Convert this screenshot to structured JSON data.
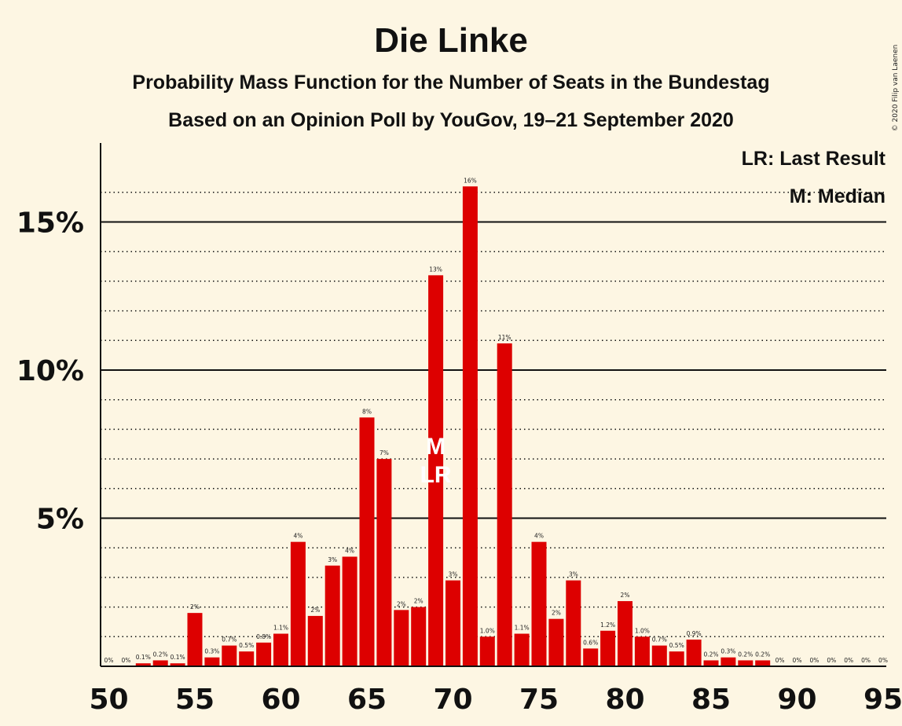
{
  "title": "Die Linke",
  "subtitle1": "Probability Mass Function for the Number of Seats in the Bundestag",
  "subtitle2": "Based on an Opinion Poll by YouGov, 19–21 September 2020",
  "copyright": "© 2020 Filip van Laenen",
  "legend": {
    "lr": "LR: Last Result",
    "m": "M: Median"
  },
  "marker_labels": {
    "median": "M",
    "last_result": "LR"
  },
  "colors": {
    "bar": "#dd0000",
    "background": "#fdf6e3",
    "marker": "#ffffff"
  },
  "chart_data": {
    "type": "bar",
    "x": [
      50,
      51,
      52,
      53,
      54,
      55,
      56,
      57,
      58,
      59,
      60,
      61,
      62,
      63,
      64,
      65,
      66,
      67,
      68,
      69,
      70,
      71,
      72,
      73,
      74,
      75,
      76,
      77,
      78,
      79,
      80,
      81,
      82,
      83,
      84,
      85,
      86,
      87,
      88,
      89,
      90,
      91,
      92,
      93,
      94,
      95
    ],
    "values": [
      0,
      0,
      0.1,
      0.2,
      0.1,
      1.8,
      0.3,
      0.7,
      0.5,
      0.8,
      1.1,
      4.2,
      1.7,
      3.4,
      3.7,
      8.4,
      7.0,
      1.9,
      2.0,
      13.2,
      2.9,
      16.2,
      1.0,
      10.9,
      1.1,
      4.2,
      1.6,
      2.9,
      0.6,
      1.2,
      2.2,
      1.0,
      0.7,
      0.5,
      0.9,
      0.2,
      0.3,
      0.2,
      0.2,
      0,
      0,
      0,
      0,
      0,
      0,
      0
    ],
    "data_labels": [
      "0%",
      "0%",
      "0.1%",
      "0.2%",
      "0.1%",
      "2%",
      "0.3%",
      "0.7%",
      "0.5%",
      "0.8%",
      "1.1%",
      "4%",
      "2%",
      "3%",
      "4%",
      "8%",
      "7%",
      "2%",
      "2%",
      "13%",
      "3%",
      "16%",
      "1.0%",
      "11%",
      "1.1%",
      "4%",
      "2%",
      "3%",
      "0.6%",
      "1.2%",
      "2%",
      "1.0%",
      "0.7%",
      "0.5%",
      "0.9%",
      "0.2%",
      "0.3%",
      "0.2%",
      "0.2%",
      "0%",
      "0%",
      "0%",
      "0%",
      "0%",
      "0%",
      "0%"
    ],
    "x_ticks": [
      "50",
      "55",
      "60",
      "65",
      "70",
      "75",
      "80",
      "85",
      "90",
      "95"
    ],
    "y_ticks": [
      "5%",
      "10%",
      "15%"
    ],
    "ylim": [
      0,
      17.6
    ],
    "median": 69,
    "last_result": 69,
    "grid": "solid at 5% steps, dotted at 1% steps",
    "legend_position": "top-right"
  }
}
